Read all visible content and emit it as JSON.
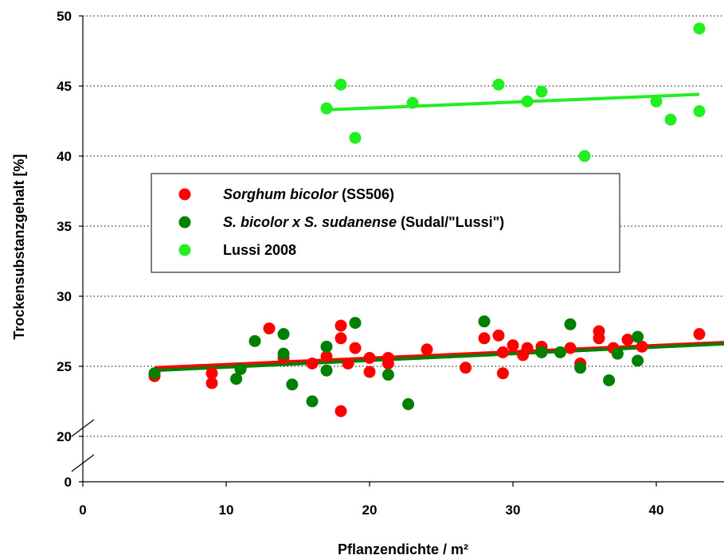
{
  "chart_data": {
    "type": "scatter",
    "xlabel": "Pflanzendichte / m²",
    "ylabel": "Trockensubstanzgehalt [%]",
    "xlim": [
      0,
      45
    ],
    "ylim_upper": [
      20,
      50
    ],
    "ylim_lower": [
      0,
      0
    ],
    "axis_break": "between 0 and 20 on y axis",
    "x_ticks": [
      "0",
      "10",
      "20",
      "30",
      "40"
    ],
    "y_ticks": [
      "0",
      "20",
      "25",
      "30",
      "35",
      "40",
      "45",
      "50"
    ],
    "grid": "horizontal dotted lines",
    "legend_position": "center-left, boxed",
    "series": [
      {
        "name": "Sorghum bicolor (SS506)",
        "name_italic": "Sorghum bicolor",
        "name_rest": " (SS506)",
        "color": "#ff0000",
        "points": [
          [
            5,
            24.3
          ],
          [
            9,
            24.5
          ],
          [
            9,
            23.8
          ],
          [
            13,
            27.7
          ],
          [
            14,
            25.6
          ],
          [
            16,
            25.2
          ],
          [
            17,
            25.7
          ],
          [
            18,
            27.9
          ],
          [
            18,
            27.0
          ],
          [
            18,
            21.8
          ],
          [
            18.5,
            25.2
          ],
          [
            19,
            26.3
          ],
          [
            20,
            25.6
          ],
          [
            20,
            24.6
          ],
          [
            21.3,
            25.6
          ],
          [
            21.3,
            25.2
          ],
          [
            24,
            26.2
          ],
          [
            26.7,
            24.9
          ],
          [
            28,
            27.0
          ],
          [
            29,
            27.2
          ],
          [
            29.3,
            26.0
          ],
          [
            29.3,
            24.5
          ],
          [
            30,
            26.5
          ],
          [
            30.7,
            25.8
          ],
          [
            31,
            26.3
          ],
          [
            32,
            26.4
          ],
          [
            34,
            26.3
          ],
          [
            34.7,
            25.2
          ],
          [
            36,
            27.5
          ],
          [
            36,
            27.0
          ],
          [
            37,
            26.3
          ],
          [
            38,
            26.9
          ],
          [
            39,
            26.4
          ],
          [
            43,
            27.3
          ]
        ],
        "trend": [
          [
            5,
            24.9
          ],
          [
            45,
            26.7
          ]
        ]
      },
      {
        "name": "S. bicolor x S. sudanense (Sudal/\"Lussi\")",
        "name_italic": "S. bicolor x S. sudanense",
        "name_rest": " (Sudal/\"Lussi\")",
        "color": "#008000",
        "points": [
          [
            5,
            24.5
          ],
          [
            10.7,
            24.1
          ],
          [
            11,
            24.8
          ],
          [
            12,
            26.8
          ],
          [
            14,
            27.3
          ],
          [
            14,
            25.9
          ],
          [
            14.6,
            23.7
          ],
          [
            16,
            22.5
          ],
          [
            17,
            26.4
          ],
          [
            17,
            24.7
          ],
          [
            19,
            28.1
          ],
          [
            21.3,
            24.4
          ],
          [
            22.7,
            22.3
          ],
          [
            28,
            28.2
          ],
          [
            32,
            26.0
          ],
          [
            33.3,
            26.0
          ],
          [
            34,
            28.0
          ],
          [
            34.7,
            24.9
          ],
          [
            36.7,
            24.0
          ],
          [
            37.3,
            25.9
          ],
          [
            38.7,
            27.1
          ],
          [
            38.7,
            25.4
          ]
        ],
        "trend": [
          [
            5,
            24.7
          ],
          [
            45,
            26.6
          ]
        ]
      },
      {
        "name": "Lussi 2008",
        "name_italic": "",
        "name_rest": "Lussi 2008",
        "color": "#22ee22",
        "points": [
          [
            17,
            43.4
          ],
          [
            18,
            45.1
          ],
          [
            19,
            41.3
          ],
          [
            23,
            43.8
          ],
          [
            29,
            45.1
          ],
          [
            31,
            43.9
          ],
          [
            32,
            44.6
          ],
          [
            35,
            40.0
          ],
          [
            40,
            43.9
          ],
          [
            41,
            42.6
          ],
          [
            43,
            49.1
          ],
          [
            43,
            43.2
          ]
        ],
        "trend": [
          [
            17,
            43.3
          ],
          [
            43,
            44.4
          ]
        ]
      }
    ]
  }
}
